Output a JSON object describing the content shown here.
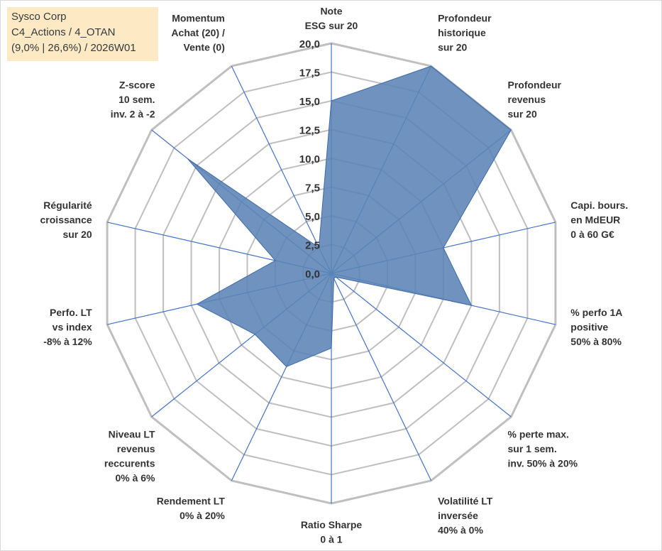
{
  "info": {
    "line1": "Sysco Corp",
    "line2": "C4_Actions / 4_OTAN",
    "line3": "(9,0% | 26,6%) / 2026W01"
  },
  "colors": {
    "grid": "#bfbfbf",
    "spoke": "#4472c4",
    "fill": "#5b84b5",
    "fill_border": "#3d6aa8",
    "info_bg": "#fde9c4"
  },
  "chart_data": {
    "type": "radar",
    "title": "",
    "rmin": 0,
    "rmax": 20,
    "tick_step": 2.5,
    "tick_labels": [
      "0,0",
      "2,5",
      "5,0",
      "7,5",
      "10,0",
      "12,5",
      "15,0",
      "17,5",
      "20,0"
    ],
    "axes": [
      {
        "label": [
          "Note",
          "ESG sur 20"
        ],
        "value": 15
      },
      {
        "label": [
          "Profondeur",
          "historique",
          "sur 20"
        ],
        "value": 20
      },
      {
        "label": [
          "Profondeur",
          "revenus",
          "sur 20"
        ],
        "value": 20
      },
      {
        "label": [
          "Capi. bours.",
          "en MdEUR",
          "0 à 60 G€"
        ],
        "value": 10
      },
      {
        "label": [
          "% perfo 1A",
          "positive",
          "50% à 80%"
        ],
        "value": 12.5
      },
      {
        "label": [
          "% perte max.",
          "sur 1 sem.",
          "inv. 50% à 20%"
        ],
        "value": 0.5
      },
      {
        "label": [
          "Volatilité LT",
          "inversée",
          "40% à 0%"
        ],
        "value": 0.5
      },
      {
        "label": [
          "Ratio Sharpe",
          "0 à 1"
        ],
        "value": 6.5
      },
      {
        "label": [
          "Rendement LT",
          "0% à 20%"
        ],
        "value": 9
      },
      {
        "label": [
          "Niveau LT",
          "revenus",
          "reccurents",
          "0% à 6%"
        ],
        "value": 8.5
      },
      {
        "label": [
          "Perfo. LT",
          "vs index",
          "-8% à 12%"
        ],
        "value": 12
      },
      {
        "label": [
          "Régularité",
          "croissance",
          "sur 20"
        ],
        "value": 5
      },
      {
        "label": [
          "Z-score",
          "10 sem.",
          "inv. 2 à -2"
        ],
        "value": 16
      },
      {
        "label": [
          "Momentum",
          "Achat (20) /",
          "Vente (0)"
        ],
        "value": 2.5
      }
    ]
  }
}
